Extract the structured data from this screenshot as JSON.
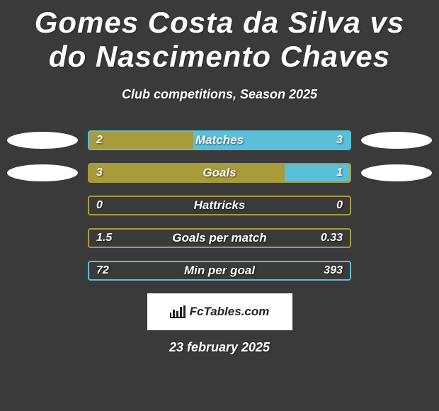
{
  "title": "Gomes Costa da Silva vs do Nascimento Chaves",
  "subtitle": "Club competitions, Season 2025",
  "date": "23 february 2025",
  "logo_text": "FcTables.com",
  "colors": {
    "left": "#a89b3c",
    "right": "#5ac0d9",
    "background": "#3a3a3a",
    "badge": "#ffffff"
  },
  "stats": [
    {
      "label": "Matches",
      "left_value": "2",
      "right_value": "3",
      "left_width_pct": 40,
      "right_width_pct": 60,
      "border_color": "#5ac0d9",
      "show_badges": true
    },
    {
      "label": "Goals",
      "left_value": "3",
      "right_value": "1",
      "left_width_pct": 75,
      "right_width_pct": 25,
      "border_color": "#a89b3c",
      "show_badges": true
    },
    {
      "label": "Hattricks",
      "left_value": "0",
      "right_value": "0",
      "left_width_pct": 0,
      "right_width_pct": 0,
      "border_color": "#a89b3c",
      "show_badges": false
    },
    {
      "label": "Goals per match",
      "left_value": "1.5",
      "right_value": "0.33",
      "left_width_pct": 0,
      "right_width_pct": 0,
      "border_color": "#a89b3c",
      "show_badges": false
    },
    {
      "label": "Min per goal",
      "left_value": "72",
      "right_value": "393",
      "left_width_pct": 0,
      "right_width_pct": 0,
      "border_color": "#5ac0d9",
      "show_badges": false
    }
  ]
}
